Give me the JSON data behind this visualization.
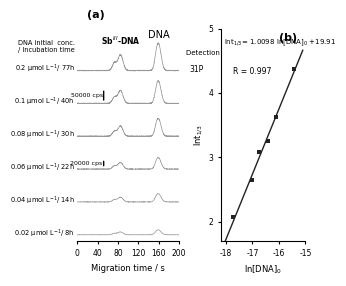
{
  "panel_a_label": "(a)",
  "panel_b_label": "(b)",
  "dna_label": "DNA",
  "sbdna_label": "Sb$^{III}$-DNA",
  "detection_label": "Detection channel",
  "channel_label": "31P",
  "header_label": "DNA initial  conc.\n/ Incubation time",
  "xlabel_a": "Migration time / s",
  "ylabel_b": "lnt$_{1/3}$",
  "xlabel_b": "ln[DNA]$_0$",
  "equation": "lnt$_{1/3}$= 1.0098 ln[DNA]$_0$ +19.91",
  "r_value": "R = 0.997",
  "xticks_a": [
    0,
    40,
    80,
    120,
    160,
    200
  ],
  "yticks_b": [
    2,
    3,
    4,
    5
  ],
  "xlim_b": [
    -18.2,
    -15.0
  ],
  "ylim_b": [
    1.7,
    4.9
  ],
  "xticks_b": [
    -18,
    -17,
    -16,
    -15
  ],
  "scale_bar_50000": "50000 cps",
  "scale_bar_20000": "20000 cps",
  "traces": [
    {
      "label": "0.2 μmol L$^{-1}$/ 77h",
      "scale": 1.0
    },
    {
      "label": "0.1 μmol L$^{-1}$/ 40h",
      "scale": 0.82
    },
    {
      "label": "0.08 μmol L$^{-1}$/ 30h",
      "scale": 0.65
    },
    {
      "label": "0.06 μmol L$^{-1}$/ 22h",
      "scale": 0.42
    },
    {
      "label": "0.04 μmol L$^{-1}$/ 14h",
      "scale": 0.3
    },
    {
      "label": "0.02 μmol L$^{-1}$/ 8h",
      "scale": 0.18
    }
  ],
  "scatter_x": [
    -17.73,
    -17.02,
    -16.74,
    -16.43,
    -16.12,
    -15.42
  ],
  "scatter_y": [
    2.07,
    2.65,
    3.08,
    3.25,
    3.62,
    4.37
  ],
  "fit_x": [
    -18.05,
    -15.1
  ],
  "fit_slope": 1.0098,
  "fit_intercept": 19.91,
  "background_color": "#ffffff",
  "trace_color": "#999999",
  "scatter_color": "#222222",
  "line_color": "#222222"
}
